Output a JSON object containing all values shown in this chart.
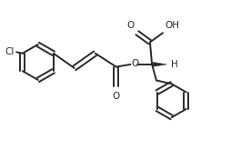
{
  "bg_color": "#ffffff",
  "line_color": "#2a2a2a",
  "line_width": 1.4,
  "font_size": 7.5,
  "figsize": [
    2.76,
    1.64
  ],
  "dpi": 100,
  "xlim": [
    0,
    10
  ],
  "ylim": [
    0,
    6
  ]
}
